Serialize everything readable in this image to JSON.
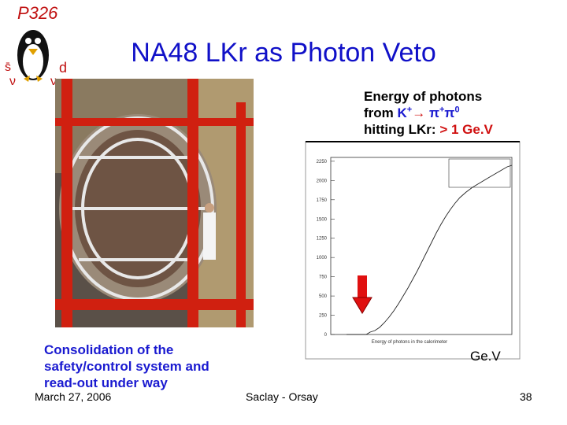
{
  "logo": {
    "label": "P326",
    "symbols": [
      "s̄",
      "d",
      "ν",
      "ν"
    ]
  },
  "title": "NA48 LKr as Photon Veto",
  "annotation": {
    "line1": "Energy of photons",
    "from": "from",
    "kaon": "K",
    "kaon_charge": "+",
    "arrow": "→",
    "pion1": "π",
    "pion1_charge": "+",
    "pion2": "π",
    "pion2_charge": "0",
    "line3": "hitting LKr:",
    "threshold": "> 1 Ge.V"
  },
  "histogram": {
    "ylim": [
      0,
      2300
    ],
    "yticks": [
      0,
      250,
      500,
      750,
      1000,
      1250,
      1500,
      1750,
      2000,
      2250
    ],
    "x_label": "Energy of photons in the calorimeter",
    "unit": "Ge.V"
  },
  "caption": [
    "Consolidation of the",
    "safety/control system and",
    "read-out under way"
  ],
  "footer": {
    "date": "March 27, 2006",
    "place": "Saclay - Orsay",
    "page": "38"
  }
}
